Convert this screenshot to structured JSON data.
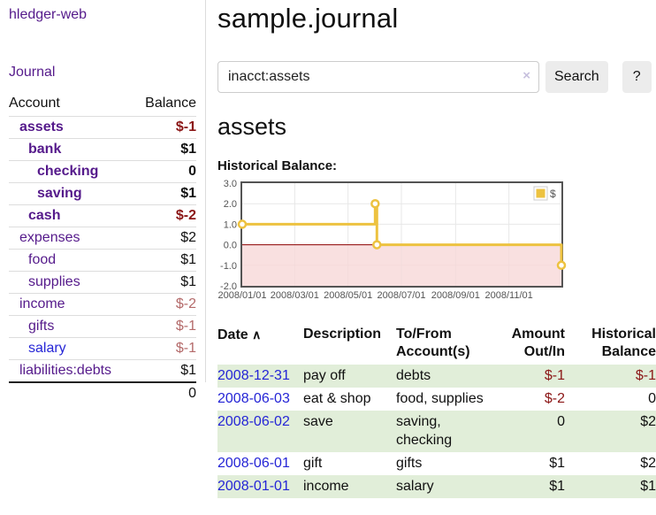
{
  "colors": {
    "accent_purple": "#551a8b",
    "link_blue": "#2525d6",
    "negative": "#8b1616",
    "negative_soft": "#b46a6a",
    "stripe_green": "#e1eed9",
    "chart_line": "#EDC240",
    "chart_negative_region": "#f8d8d8",
    "chart_zero_line": "#8b0000"
  },
  "app": {
    "brand": "hledger-web",
    "nav_journal": "Journal"
  },
  "sidebar": {
    "accounts_header": {
      "account": "Account",
      "balance": "Balance"
    },
    "accounts": [
      {
        "name": "assets",
        "indent": 1,
        "bold": true,
        "link": "purple",
        "balance": "$-1",
        "val": "neg"
      },
      {
        "name": "bank",
        "indent": 2,
        "bold": true,
        "link": "purple",
        "balance": "$1",
        "val": "plain"
      },
      {
        "name": "checking",
        "indent": 3,
        "bold": true,
        "link": "purple",
        "balance": "0",
        "val": "plain"
      },
      {
        "name": "saving",
        "indent": 3,
        "bold": true,
        "link": "purple",
        "balance": "$1",
        "val": "plain"
      },
      {
        "name": "cash",
        "indent": 2,
        "bold": true,
        "link": "purple",
        "balance": "$-2",
        "val": "neg"
      },
      {
        "name": "expenses",
        "indent": 1,
        "bold": false,
        "link": "purple",
        "balance": "$2",
        "val": "plain"
      },
      {
        "name": "food",
        "indent": 2,
        "bold": false,
        "link": "purple",
        "balance": "$1",
        "val": "plain"
      },
      {
        "name": "supplies",
        "indent": 2,
        "bold": false,
        "link": "purple",
        "balance": "$1",
        "val": "plain"
      },
      {
        "name": "income",
        "indent": 1,
        "bold": false,
        "link": "purple",
        "balance": "$-2",
        "val": "negsoft"
      },
      {
        "name": "gifts",
        "indent": 2,
        "bold": false,
        "link": "purple",
        "balance": "$-1",
        "val": "negsoft"
      },
      {
        "name": "salary",
        "indent": 2,
        "bold": false,
        "link": "blue",
        "balance": "$-1",
        "val": "negsoft"
      },
      {
        "name": "liabilities:debts",
        "indent": 1,
        "bold": false,
        "link": "purple",
        "balance": "$1",
        "val": "plain"
      }
    ],
    "total": "0"
  },
  "main": {
    "title": "sample.journal",
    "search": {
      "value": "inacct:assets",
      "clear": "×",
      "button": "Search",
      "help": "?"
    },
    "account_heading": "assets",
    "chart_label": "Historical Balance:"
  },
  "chart_data": {
    "type": "line",
    "title": "Historical Balance",
    "steps": true,
    "series": [
      {
        "name": "$",
        "color": "#EDC240",
        "points": [
          [
            "2008-01-01",
            1.0
          ],
          [
            "2008-06-01",
            2.0
          ],
          [
            "2008-06-03",
            0.0
          ],
          [
            "2008-12-31",
            -1.0
          ]
        ]
      }
    ],
    "ylim": [
      -2.0,
      3.0
    ],
    "yticks": [
      3.0,
      2.0,
      1.0,
      0.0,
      -1.0,
      -2.0
    ],
    "xticks": [
      "2008/01/01",
      "2008/03/01",
      "2008/05/01",
      "2008/07/01",
      "2008/09/01",
      "2008/11/01"
    ],
    "xrange": [
      "2008-01-01",
      "2008-12-31"
    ],
    "grid": true,
    "negative_region_color": "#f8d8d8",
    "zero_line_color": "#8b0000",
    "legend": {
      "label": "$",
      "position": "top-right"
    }
  },
  "register": {
    "columns": [
      "Date",
      "Description",
      "To/From Account(s)",
      "Amount Out/In",
      "Historical Balance"
    ],
    "sort_icon": "∧",
    "rows": [
      {
        "date": "2008-12-31",
        "description": "pay off",
        "accounts": "debts",
        "amount": "$-1",
        "amount_neg": true,
        "balance": "$-1",
        "balance_neg": true,
        "shade": true
      },
      {
        "date": "2008-06-03",
        "description": "eat & shop",
        "accounts": "food, supplies",
        "amount": "$-2",
        "amount_neg": true,
        "balance": "0",
        "balance_neg": false,
        "shade": false
      },
      {
        "date": "2008-06-02",
        "description": "save",
        "accounts": "saving, checking",
        "amount": "0",
        "amount_neg": false,
        "balance": "$2",
        "balance_neg": false,
        "shade": true
      },
      {
        "date": "2008-06-01",
        "description": "gift",
        "accounts": "gifts",
        "amount": "$1",
        "amount_neg": false,
        "balance": "$2",
        "balance_neg": false,
        "shade": false
      },
      {
        "date": "2008-01-01",
        "description": "income",
        "accounts": "salary",
        "amount": "$1",
        "amount_neg": false,
        "balance": "$1",
        "balance_neg": false,
        "shade": true
      }
    ]
  }
}
